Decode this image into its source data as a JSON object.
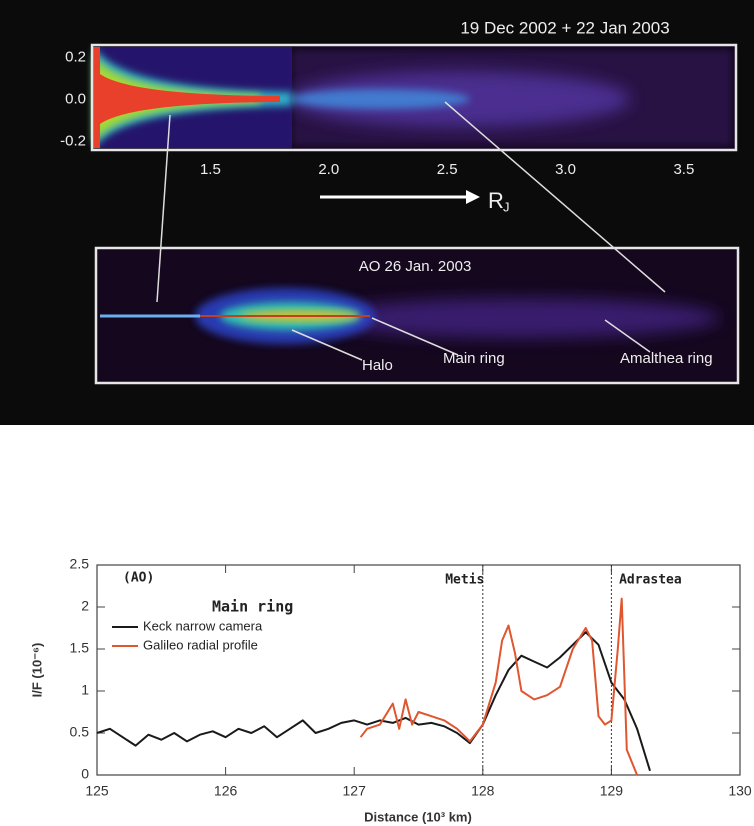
{
  "chart_data": [
    {
      "type": "image",
      "title": "19 Dec 2002 + 22 Jan 2003",
      "xlim": [
        1,
        3.72
      ],
      "xticks": [
        1.5,
        {
          "value": 2,
          "label": "2.0"
        },
        2.5,
        {
          "value": 3,
          "label": "3.0"
        },
        3.5
      ],
      "ylim": [
        -0.24,
        0.26
      ],
      "yticks": [
        0.2,
        {
          "value": 0,
          "label": "0.0"
        },
        -0.2
      ],
      "x_label": "R",
      "x_label_sub": "J",
      "inset_title": "AO 26 Jan. 2003",
      "annotations": [
        "Halo",
        "Main ring",
        "Amalthea ring"
      ]
    },
    {
      "type": "line",
      "title": "Main ring",
      "panel_label": "(AO)",
      "x_label": "Distance (10³ km)",
      "y_label": "I/F (10⁻⁶)",
      "xlim": [
        125,
        130
      ],
      "xticks": [
        125,
        126,
        127,
        128,
        129,
        130
      ],
      "ylim": [
        0,
        2.5
      ],
      "yticks": [
        0,
        0.5,
        1,
        1.5,
        2,
        2.5
      ],
      "reference_lines": [
        {
          "x": 128,
          "label": "Metis"
        },
        {
          "x": 129,
          "label": "Adrastea"
        }
      ],
      "series": [
        {
          "name": "Keck narrow camera",
          "color": "#1a1a1a",
          "x": [
            125.0,
            125.1,
            125.2,
            125.3,
            125.4,
            125.5,
            125.6,
            125.7,
            125.8,
            125.9,
            126.0,
            126.1,
            126.2,
            126.3,
            126.4,
            126.5,
            126.6,
            126.7,
            126.8,
            126.9,
            127.0,
            127.1,
            127.2,
            127.3,
            127.4,
            127.5,
            127.6,
            127.7,
            127.8,
            127.9,
            128.0,
            128.1,
            128.2,
            128.3,
            128.4,
            128.5,
            128.6,
            128.7,
            128.8,
            128.9,
            129.0,
            129.1,
            129.2,
            129.3
          ],
          "values": [
            0.5,
            0.55,
            0.45,
            0.35,
            0.48,
            0.42,
            0.5,
            0.4,
            0.48,
            0.52,
            0.45,
            0.55,
            0.5,
            0.58,
            0.45,
            0.55,
            0.65,
            0.5,
            0.55,
            0.62,
            0.65,
            0.6,
            0.65,
            0.62,
            0.68,
            0.6,
            0.62,
            0.58,
            0.5,
            0.38,
            0.6,
            0.95,
            1.25,
            1.42,
            1.35,
            1.28,
            1.4,
            1.55,
            1.7,
            1.55,
            1.1,
            0.9,
            0.55,
            0.05
          ]
        },
        {
          "name": "Galileo radial profile",
          "color": "#e0562e",
          "x": [
            127.05,
            127.1,
            127.2,
            127.3,
            127.35,
            127.4,
            127.45,
            127.5,
            127.6,
            127.7,
            127.8,
            127.9,
            128.0,
            128.1,
            128.15,
            128.2,
            128.25,
            128.3,
            128.4,
            128.5,
            128.6,
            128.7,
            128.8,
            128.85,
            128.9,
            128.95,
            129.0,
            129.05,
            129.08,
            129.12,
            129.2
          ],
          "values": [
            0.45,
            0.55,
            0.6,
            0.85,
            0.55,
            0.9,
            0.6,
            0.75,
            0.7,
            0.65,
            0.55,
            0.4,
            0.6,
            1.1,
            1.6,
            1.78,
            1.45,
            1.0,
            0.9,
            0.95,
            1.05,
            1.5,
            1.75,
            1.6,
            0.7,
            0.6,
            0.65,
            1.5,
            2.1,
            0.3,
            0.0
          ]
        }
      ]
    }
  ]
}
